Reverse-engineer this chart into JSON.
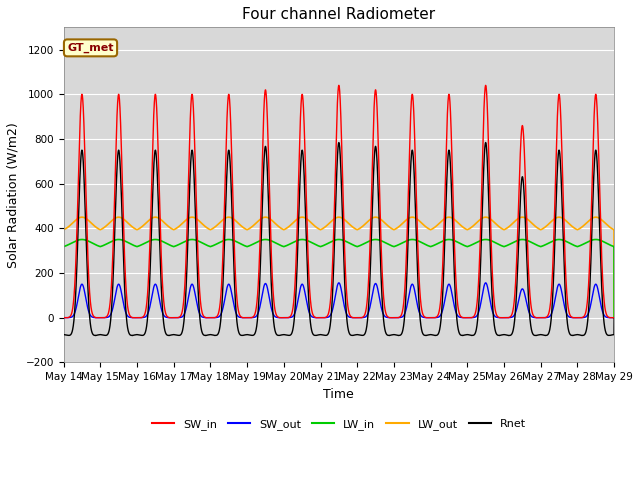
{
  "title": "Four channel Radiometer",
  "xlabel": "Time",
  "ylabel": "Solar Radiation (W/m2)",
  "ylim": [
    -200,
    1300
  ],
  "yticks": [
    -200,
    0,
    200,
    400,
    600,
    800,
    1000,
    1200
  ],
  "start_day": 14,
  "end_day": 29,
  "num_days": 15,
  "annotation_text": "GT_met",
  "colors": {
    "SW_in": "#ff0000",
    "SW_out": "#0000ff",
    "LW_in": "#00cc00",
    "LW_out": "#ffaa00",
    "Rnet": "#000000"
  },
  "legend_entries": [
    "SW_in",
    "SW_out",
    "LW_in",
    "LW_out",
    "Rnet"
  ],
  "points_per_day": 288,
  "day_peaks": [
    1000,
    1000,
    1000,
    1000,
    1000,
    1020,
    1000,
    1040,
    1020,
    1000,
    1000,
    1040,
    860,
    1000,
    1000
  ],
  "plot_bg": "#d8d8d8",
  "fig_bg": "#ffffff"
}
